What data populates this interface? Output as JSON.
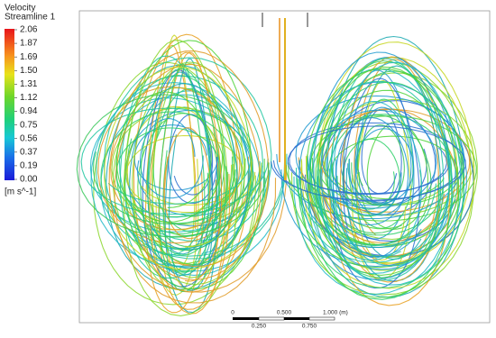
{
  "legend": {
    "title": "Velocity",
    "subtitle": "Streamline 1",
    "ticks": [
      "2.06",
      "1.87",
      "1.69",
      "1.50",
      "1.31",
      "1.12",
      "0.94",
      "0.75",
      "0.56",
      "0.37",
      "0.19",
      "0.00"
    ],
    "unit": "[m s^-1]"
  },
  "scale_bar": {
    "top_labels": [
      "0",
      "0.500",
      "1.000 (m)"
    ],
    "bottom_labels": [
      "0.250",
      "0.750"
    ]
  }
}
